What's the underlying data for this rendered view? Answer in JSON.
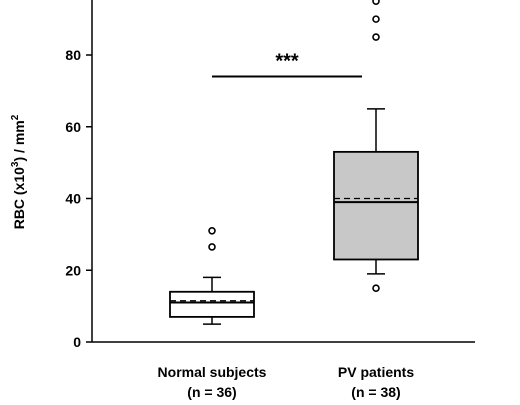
{
  "chart_data": {
    "type": "box",
    "ylabel": "RBC (x10",
    "ylabel_sup1": "3",
    "ylabel_mid": ") / mm",
    "ylabel_sup2": "2",
    "ylim": [
      0,
      95
    ],
    "yticks": [
      0,
      20,
      40,
      60,
      80
    ],
    "grid": false,
    "categories": [
      {
        "line1": "Normal subjects",
        "line2": "(n = 36)"
      },
      {
        "line1": "PV patients",
        "line2": "(n = 38)"
      }
    ],
    "boxes": [
      {
        "whisker_low": 5,
        "q1": 7,
        "median": 11,
        "mean": 11.5,
        "q3": 14,
        "whisker_high": 18,
        "fill": "#ffffff",
        "outliers": [
          26.5,
          31
        ]
      },
      {
        "whisker_low": 19,
        "q1": 23,
        "median": 39,
        "mean": 40,
        "q3": 53,
        "whisker_high": 65,
        "fill": "#c8c8c8",
        "outliers": [
          15,
          85,
          90,
          95
        ]
      }
    ],
    "significance": {
      "label": "***",
      "y": 74
    }
  }
}
